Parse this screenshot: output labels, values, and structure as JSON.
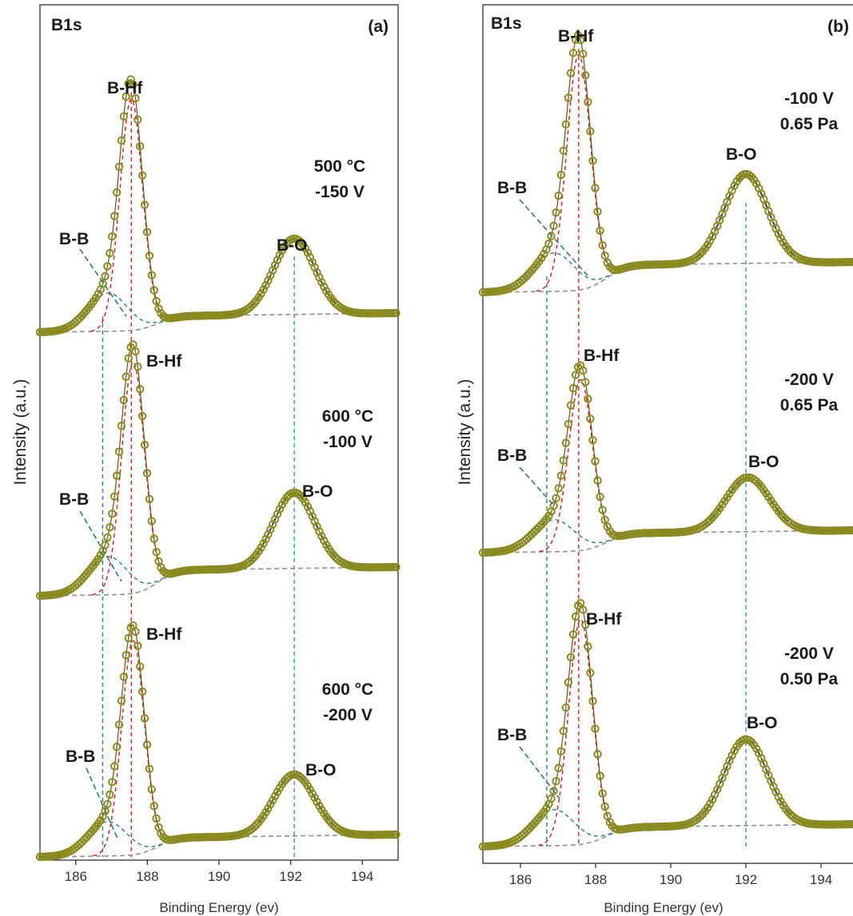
{
  "chart_data": [
    {
      "type": "line",
      "panel_label": "(a)",
      "corner_label": "B1s",
      "xlabel": "Binding Energy (ev)",
      "ylabel": "Intensity (a.u.)",
      "xlim": [
        185,
        195
      ],
      "xticks": [
        186,
        188,
        190,
        192,
        194
      ],
      "reference_lines": {
        "B-B": 186.75,
        "B-Hf": 187.55,
        "B-O": 192.1
      },
      "spectra": [
        {
          "condition": [
            "500 °C",
            "-150 V"
          ],
          "peaks": {
            "B-B": 186.9,
            "B-Hf": 187.55,
            "B-O": 192.1
          },
          "peak_labels": [
            "B-B",
            "B-Hf",
            "B-O"
          ]
        },
        {
          "condition": [
            "600 °C",
            "-100 V"
          ],
          "peaks": {
            "B-B": 186.9,
            "B-Hf": 187.6,
            "B-O": 192.1
          },
          "peak_labels": [
            "B-B",
            "B-Hf",
            "B-O"
          ]
        },
        {
          "condition": [
            "600 °C",
            "-200 V"
          ],
          "peaks": {
            "B-B": 186.9,
            "B-Hf": 187.6,
            "B-O": 192.1
          },
          "peak_labels": [
            "B-B",
            "B-Hf",
            "B-O"
          ]
        }
      ]
    },
    {
      "type": "line",
      "panel_label": "(b)",
      "corner_label": "B1s",
      "xlabel": "Binding Energy (ev)",
      "ylabel": "Intensity (a.u.)",
      "xlim": [
        185,
        195
      ],
      "xticks": [
        186,
        188,
        190,
        192,
        194
      ],
      "reference_lines": {
        "B-B": 186.7,
        "B-Hf": 187.55,
        "B-O": 192.0
      },
      "spectra": [
        {
          "condition": [
            "-100 V",
            "0.65 Pa"
          ],
          "peaks": {
            "B-B": 186.9,
            "B-Hf": 187.55,
            "B-O": 192.0
          },
          "peak_labels": [
            "B-B",
            "B-Hf",
            "B-O"
          ]
        },
        {
          "condition": [
            "-200 V",
            "0.65 Pa"
          ],
          "peaks": {
            "B-B": 186.9,
            "B-Hf": 187.6,
            "B-O": 192.05
          },
          "peak_labels": [
            "B-B",
            "B-Hf",
            "B-O"
          ]
        },
        {
          "condition": [
            "-200 V",
            "0.50 Pa"
          ],
          "peaks": {
            "B-B": 186.9,
            "B-Hf": 187.6,
            "B-O": 192.0
          },
          "peak_labels": [
            "B-B",
            "B-Hf",
            "B-O"
          ]
        }
      ]
    }
  ],
  "colors": {
    "data_markers": "#8a8a1e",
    "envelope": "#5a5a10",
    "b_hf_component": "#e02020",
    "b_b_component": "#2a8a8a",
    "b_o_component": "#1f2fa0",
    "background": "#909090",
    "ref_b_hf": "#e02020",
    "ref_b_b": "#2a7f7f",
    "ref_b_o": "#3a8fd0"
  }
}
